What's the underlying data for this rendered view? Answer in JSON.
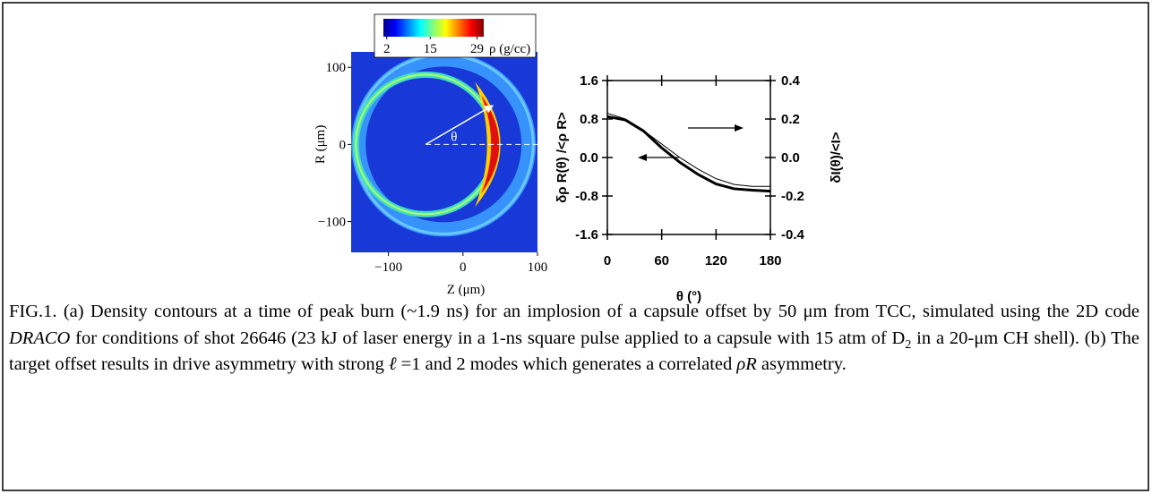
{
  "chart_data": [
    {
      "type": "image",
      "xlabel": "Z (μm)",
      "ylabel": "R (μm)",
      "xlim": [
        -150,
        100
      ],
      "ylim": [
        -140,
        120
      ],
      "xticks": [
        {
          "value": -100,
          "label": "−100"
        },
        0,
        100
      ],
      "yticks": [
        100,
        0,
        {
          "value": -100,
          "label": "−100"
        }
      ],
      "colorbar": {
        "lim": [
          1,
          31
        ],
        "ticks": [
          2,
          15,
          29
        ],
        "label": "ρ (g/cc)"
      },
      "annotation": "θ"
    },
    {
      "type": "line",
      "xlabel": "θ (°)",
      "ylabel": "δρ R(θ) /<ρ R>",
      "y2label": "δI(θ)/<I>",
      "x": [
        0,
        20,
        40,
        60,
        80,
        100,
        120,
        140,
        160,
        180
      ],
      "xlim": [
        0,
        180
      ],
      "xticks": [
        0,
        60,
        120,
        180
      ],
      "ylim": [
        -1.6,
        1.6
      ],
      "yticks": [
        1.6,
        0.8,
        {
          "value": 0,
          "label": "0.0"
        },
        -0.8,
        -1.6
      ],
      "y2lim": [
        -0.4,
        0.4
      ],
      "y2ticks": [
        0.4,
        0.2,
        {
          "value": 0,
          "label": "0.0"
        },
        -0.2,
        -0.4
      ],
      "series": [
        {
          "color": "#000000",
          "width": 3,
          "values": [
            0.85,
            0.78,
            0.55,
            0.2,
            -0.1,
            -0.35,
            -0.55,
            -0.65,
            -0.68,
            -0.7
          ]
        },
        {
          "color": "#000000",
          "width": 1,
          "axis": "y2",
          "values": [
            0.23,
            0.2,
            0.14,
            0.07,
            0.0,
            -0.06,
            -0.11,
            -0.14,
            -0.15,
            -0.15
          ]
        }
      ]
    }
  ],
  "caption": [
    "FIG.1.  (a) Density contours at a time of peak burn (~1.9 ns) for an implosion of a capsule  offset by 50 μm from TCC, simulated using the 2D code ",
    "DRACO",
    " for conditions of shot 26646 (23 kJ of laser energy in a 1-ns square pulse applied to a capsule with 15 atm of D",
    "2",
    " in a 20-μm CH shell).  (b) The target offset results in drive asymmetry with strong ",
    "ℓ",
    " =1 and 2 modes which generates a correlated ",
    "ρR",
    " asymmetry."
  ]
}
